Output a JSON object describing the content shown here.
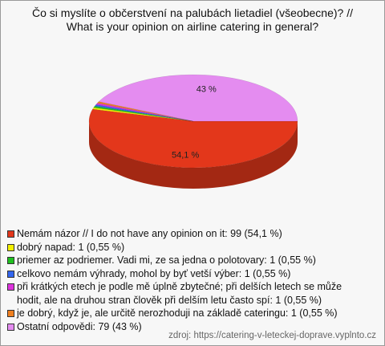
{
  "chart_data": {
    "type": "pie3d",
    "title": [
      "Čo si myslíte o občerstvení na palubách lietadiel (všeobecne)? //",
      "What is your opinion on airline catering in general?"
    ],
    "categories": [
      "Nemám názor // I do not have any opinion on it: 99 (54,1 %)",
      "dobrý napad: 1 (0,55 %)",
      "priemer az podriemer. Vadi mi, ze sa jedna o polotovary: 1 (0,55 %)",
      "celkovo nemám výhrady, mohol by byť vetší výber: 1 (0,55 %)",
      "při krátkých etech je podle mě úplně zbytečné; při delších letech se může hodit, ale na druhou stran člověk při delším letu často spí: 1 (0,55 %)",
      "je dobrý, když je, ale určitě nerozhoduji na základě cateringu: 1 (0,55 %)",
      "Ostatní odpovědi: 79 (43 %)"
    ],
    "values": [
      54.1,
      0.55,
      0.55,
      0.55,
      0.55,
      0.55,
      43
    ],
    "value_labels": [
      "54,1 %",
      null,
      null,
      null,
      null,
      null,
      "43 %"
    ],
    "colors": [
      "#e3371b",
      "#f2f000",
      "#20c020",
      "#3366ee",
      "#dd33dd",
      "#f08020",
      "#e48cf0"
    ],
    "source": "zdroj: https://catering-v-leteckej-doprave.vyplnto.cz"
  }
}
